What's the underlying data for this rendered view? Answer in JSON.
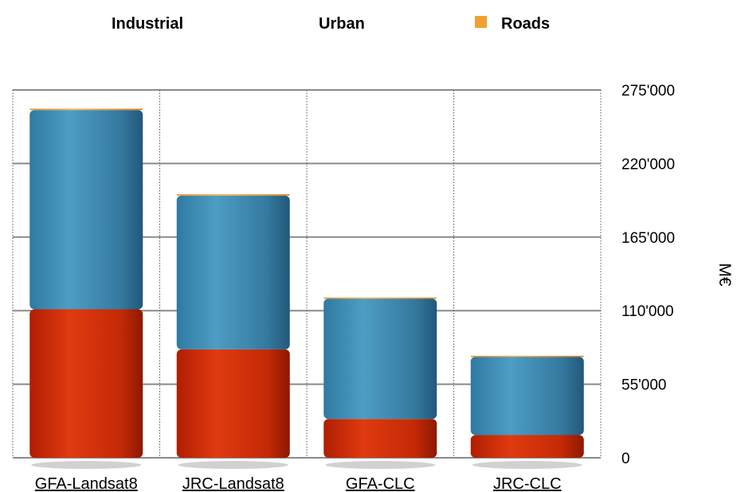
{
  "chart_data": {
    "type": "bar",
    "stacked": true,
    "categories": [
      "GFA-Landsat8",
      "JRC-Landsat8",
      "GFA-CLC",
      "JRC-CLC"
    ],
    "series": [
      {
        "name": "Industrial",
        "color": "#cc2a08",
        "values": [
          111000,
          81000,
          29000,
          17000
        ]
      },
      {
        "name": "Urban",
        "color": "#3f8cb3",
        "values": [
          149000,
          115000,
          90000,
          58500
        ]
      },
      {
        "name": "Roads",
        "color": "#f0a030",
        "values": [
          1000,
          1000,
          800,
          800
        ]
      }
    ],
    "ylabel": "M€",
    "ylim": [
      0,
      275000
    ],
    "yticks": [
      0,
      55000,
      110000,
      165000,
      220000,
      275000
    ],
    "ytick_labels": [
      "0",
      "55'000",
      "110'000",
      "165'000",
      "220'000",
      "275'000"
    ],
    "y_axis_side": "right",
    "grid": true,
    "legend_position": "top"
  }
}
